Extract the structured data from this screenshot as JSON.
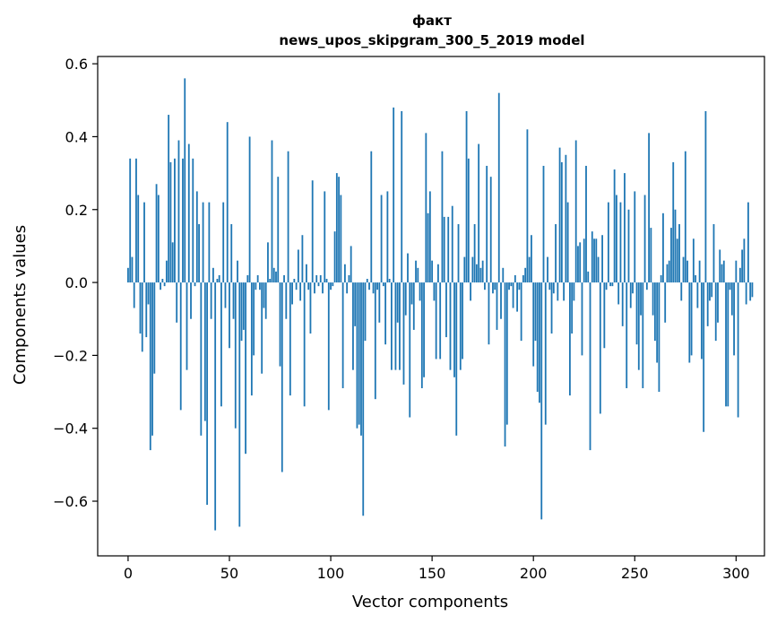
{
  "chart_data": {
    "type": "bar",
    "title": "факт",
    "subtitle": "news_upos_skipgram_300_5_2019 model",
    "xlabel": "Vector components",
    "ylabel": "Components values",
    "xlim": [
      -15,
      314
    ],
    "ylim": [
      -0.75,
      0.62
    ],
    "xticks": [
      0,
      50,
      100,
      150,
      200,
      250,
      300
    ],
    "xtick_labels": [
      "0",
      "50",
      "100",
      "150",
      "200",
      "250",
      "300"
    ],
    "yticks": [
      -0.6,
      -0.4,
      -0.2,
      0.0,
      0.2,
      0.4,
      0.6
    ],
    "ytick_labels": [
      "−0.6",
      "−0.4",
      "−0.2",
      "0.0",
      "0.2",
      "0.4",
      "0.6"
    ],
    "grid": false,
    "color": "#1f77b4",
    "x_start": 0,
    "values": [
      0.04,
      0.34,
      0.07,
      -0.07,
      0.34,
      0.24,
      -0.14,
      -0.19,
      0.22,
      -0.15,
      -0.06,
      -0.46,
      -0.42,
      -0.25,
      0.27,
      0.24,
      -0.02,
      0.01,
      -0.01,
      0.06,
      0.46,
      0.33,
      0.11,
      0.34,
      -0.11,
      0.39,
      -0.35,
      0.34,
      0.56,
      -0.24,
      0.38,
      -0.1,
      0.34,
      -0.01,
      0.25,
      0.16,
      -0.42,
      0.22,
      -0.38,
      -0.61,
      0.22,
      -0.1,
      0.04,
      -0.68,
      0.01,
      0.02,
      -0.34,
      0.22,
      -0.07,
      0.44,
      -0.18,
      0.16,
      -0.1,
      -0.4,
      0.06,
      -0.67,
      -0.16,
      -0.13,
      -0.47,
      0.02,
      0.4,
      -0.31,
      -0.2,
      -0.02,
      0.02,
      -0.02,
      -0.25,
      -0.07,
      -0.1,
      0.11,
      0.01,
      0.39,
      0.04,
      0.03,
      0.29,
      -0.23,
      -0.52,
      0.02,
      -0.1,
      0.36,
      -0.31,
      -0.06,
      0.01,
      -0.02,
      0.09,
      -0.05,
      0.13,
      -0.34,
      0.05,
      -0.02,
      -0.14,
      0.28,
      -0.03,
      0.02,
      -0.01,
      0.02,
      -0.03,
      0.25,
      0.01,
      -0.35,
      -0.02,
      -0.01,
      0.14,
      0.3,
      0.29,
      0.24,
      -0.29,
      0.05,
      -0.03,
      0.02,
      0.1,
      -0.24,
      -0.12,
      -0.4,
      -0.39,
      -0.42,
      -0.64,
      -0.16,
      0.01,
      -0.02,
      0.36,
      -0.03,
      -0.32,
      -0.02,
      -0.11,
      0.24,
      -0.01,
      -0.17,
      0.25,
      0.01,
      -0.24,
      0.48,
      -0.24,
      -0.11,
      -0.24,
      0.47,
      -0.28,
      -0.09,
      0.08,
      -0.37,
      -0.06,
      -0.13,
      0.06,
      0.04,
      -0.05,
      -0.29,
      -0.26,
      0.41,
      0.19,
      0.25,
      0.06,
      -0.05,
      -0.21,
      0.05,
      -0.21,
      0.36,
      0.18,
      -0.15,
      0.18,
      -0.24,
      0.21,
      -0.26,
      -0.42,
      0.16,
      -0.24,
      -0.21,
      0.07,
      0.47,
      0.34,
      -0.05,
      0.07,
      0.16,
      0.05,
      0.38,
      0.04,
      0.06,
      -0.02,
      0.32,
      -0.17,
      0.29,
      -0.03,
      -0.02,
      -0.13,
      0.52,
      -0.1,
      0.04,
      -0.45,
      -0.39,
      -0.02,
      -0.01,
      -0.07,
      0.02,
      -0.08,
      -0.02,
      -0.16,
      0.02,
      0.04,
      0.42,
      0.07,
      0.13,
      -0.23,
      -0.16,
      -0.3,
      -0.33,
      -0.65,
      0.32,
      -0.39,
      0.07,
      -0.02,
      -0.14,
      -0.03,
      0.16,
      -0.05,
      0.37,
      0.33,
      -0.05,
      0.35,
      0.22,
      -0.31,
      -0.14,
      -0.05,
      0.39,
      0.1,
      0.11,
      -0.2,
      0.12,
      0.32,
      0.03,
      -0.46,
      0.14,
      0.12,
      0.12,
      0.07,
      -0.36,
      0.13,
      -0.18,
      -0.02,
      0.22,
      -0.01,
      -0.01,
      0.31,
      0.24,
      -0.06,
      0.22,
      -0.12,
      0.3,
      -0.29,
      0.2,
      -0.07,
      -0.03,
      0.25,
      -0.17,
      -0.24,
      -0.09,
      -0.29,
      0.24,
      -0.02,
      0.41,
      0.15,
      -0.09,
      -0.16,
      -0.22,
      -0.3,
      0.02,
      0.19,
      -0.11,
      0.05,
      0.06,
      0.15,
      0.33,
      0.2,
      0.12,
      0.16,
      -0.05,
      0.07,
      0.36,
      0.06,
      -0.22,
      -0.2,
      0.12,
      0.02,
      -0.07,
      0.06,
      -0.21,
      -0.41,
      0.47,
      -0.12,
      -0.05,
      -0.04,
      0.16,
      -0.16,
      -0.11,
      0.09,
      0.05,
      0.06,
      -0.34,
      -0.34,
      -0.02,
      -0.09,
      -0.2,
      0.06,
      -0.37,
      0.04,
      0.09,
      0.12,
      -0.06,
      0.22,
      -0.05,
      -0.04
    ]
  }
}
